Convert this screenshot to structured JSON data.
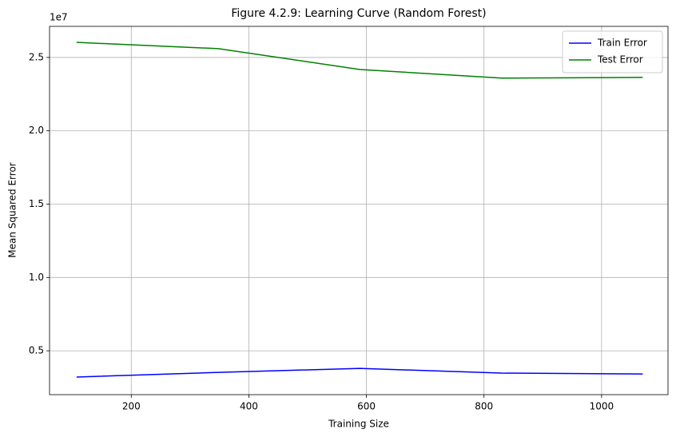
{
  "chart_data": {
    "type": "line",
    "title": "Figure 4.2.9: Learning Curve (Random Forest)",
    "x_label": "Training Size",
    "y_label": "Mean Squared Error",
    "y_offset_text": "1e7",
    "x": [
      107,
      348,
      589,
      830,
      1070
    ],
    "series": [
      {
        "name": "Train Error",
        "color": "#0000ff",
        "values": [
          3210000,
          3530000,
          3800000,
          3480000,
          3420000
        ]
      },
      {
        "name": "Test Error",
        "color": "#008000",
        "values": [
          26030000,
          25600000,
          24180000,
          23590000,
          23640000
        ]
      }
    ],
    "xlim": [
      61,
      1113
    ],
    "ylim": [
      2010000,
      27120000
    ],
    "xticks": [
      200,
      400,
      600,
      800,
      1000
    ],
    "yticks": [
      {
        "value": 5000000,
        "label": "0.5"
      },
      {
        "value": 10000000,
        "label": "1.0"
      },
      {
        "value": 15000000,
        "label": "1.5"
      },
      {
        "value": 20000000,
        "label": "2.0"
      },
      {
        "value": 25000000,
        "label": "2.5"
      }
    ],
    "grid": true,
    "legend": "upper-right"
  }
}
